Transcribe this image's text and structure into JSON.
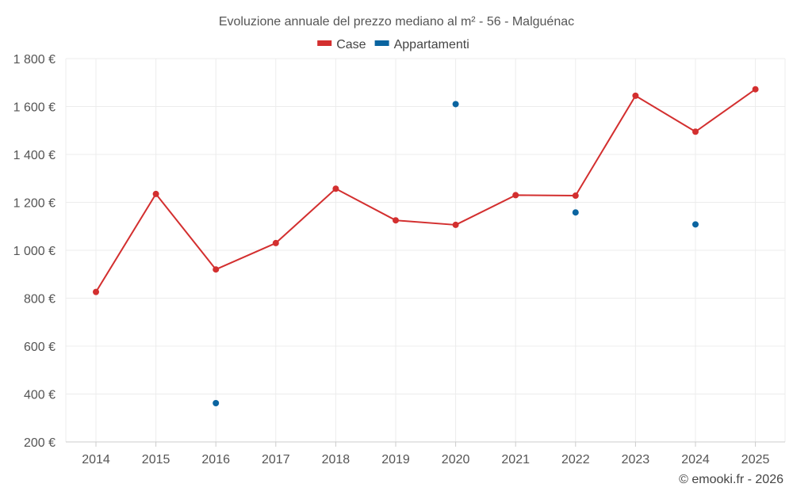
{
  "chart_data": {
    "type": "line",
    "title": "Evoluzione annuale del prezzo mediano al m² - 56 - Malguénac",
    "categories": [
      "2014",
      "2015",
      "2016",
      "2017",
      "2018",
      "2019",
      "2020",
      "2021",
      "2022",
      "2023",
      "2024",
      "2025"
    ],
    "series": [
      {
        "name": "Case",
        "color": "#d32f2f",
        "style": "line-markers",
        "values": [
          826,
          1235,
          920,
          1030,
          1257,
          1125,
          1106,
          1230,
          1228,
          1645,
          1495,
          1672
        ]
      },
      {
        "name": "Appartamenti",
        "color": "#0a64a0",
        "style": "markers",
        "values": [
          null,
          null,
          362,
          null,
          null,
          null,
          1610,
          null,
          1158,
          null,
          1108,
          null
        ]
      }
    ],
    "ylim": [
      200,
      1800
    ],
    "yticks": [
      200,
      400,
      600,
      800,
      1000,
      1200,
      1400,
      1600,
      1800
    ],
    "ytick_labels": [
      "200 €",
      "400 €",
      "600 €",
      "800 €",
      "1 000 €",
      "1 200 €",
      "1 400 €",
      "1 600 €",
      "1 800 €"
    ],
    "xlabel": "",
    "ylabel": "",
    "grid": true,
    "legend_position": "top-center"
  },
  "credit": "© emooki.fr - 2026"
}
